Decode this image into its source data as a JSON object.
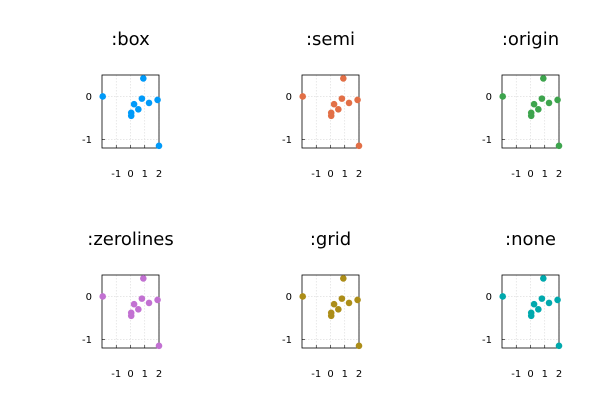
{
  "chart_data": [
    {
      "type": "scatter",
      "title": ":box",
      "color": "#009af9",
      "framestyle": "box",
      "grid": true,
      "xlim": [
        -2,
        2
      ],
      "ylim": [
        -1.2,
        0.5
      ],
      "xticks": [
        -1,
        0,
        1,
        2
      ],
      "yticks": [
        0,
        -1
      ],
      "points": [
        [
          -1.95,
          0.0
        ],
        [
          0.9,
          0.42
        ],
        [
          0.25,
          -0.18
        ],
        [
          0.55,
          -0.3
        ],
        [
          0.05,
          -0.38
        ],
        [
          0.05,
          -0.45
        ],
        [
          0.8,
          -0.05
        ],
        [
          1.3,
          -0.15
        ],
        [
          1.9,
          -0.08
        ],
        [
          2.0,
          -1.15
        ]
      ]
    },
    {
      "type": "scatter",
      "title": ":semi",
      "color": "#e26f46",
      "framestyle": "semi",
      "grid": true,
      "xlim": [
        -2,
        2
      ],
      "ylim": [
        -1.2,
        0.5
      ],
      "xticks": [
        -1,
        0,
        1,
        2
      ],
      "yticks": [
        0,
        -1
      ],
      "points": [
        [
          -1.95,
          0.0
        ],
        [
          0.9,
          0.42
        ],
        [
          0.25,
          -0.18
        ],
        [
          0.55,
          -0.3
        ],
        [
          0.05,
          -0.38
        ],
        [
          0.05,
          -0.45
        ],
        [
          0.8,
          -0.05
        ],
        [
          1.3,
          -0.15
        ],
        [
          1.9,
          -0.08
        ],
        [
          2.0,
          -1.15
        ]
      ]
    },
    {
      "type": "scatter",
      "title": ":origin",
      "color": "#3da44d",
      "framestyle": "origin",
      "grid": true,
      "xlim": [
        -2,
        2
      ],
      "ylim": [
        -1.2,
        0.5
      ],
      "xticks": [
        -1,
        0,
        1,
        2
      ],
      "yticks": [
        0,
        -1
      ],
      "points": [
        [
          -1.95,
          0.0
        ],
        [
          0.9,
          0.42
        ],
        [
          0.25,
          -0.18
        ],
        [
          0.55,
          -0.3
        ],
        [
          0.05,
          -0.38
        ],
        [
          0.05,
          -0.45
        ],
        [
          0.8,
          -0.05
        ],
        [
          1.3,
          -0.15
        ],
        [
          1.9,
          -0.08
        ],
        [
          2.0,
          -1.15
        ]
      ]
    },
    {
      "type": "scatter",
      "title": ":zerolines",
      "color": "#c271d2",
      "framestyle": "zerolines",
      "grid": true,
      "xlim": [
        -2,
        2
      ],
      "ylim": [
        -1.2,
        0.5
      ],
      "xticks": [
        -1,
        0,
        1,
        2
      ],
      "yticks": [
        0,
        -1
      ],
      "points": [
        [
          -1.95,
          0.0
        ],
        [
          0.9,
          0.42
        ],
        [
          0.25,
          -0.18
        ],
        [
          0.55,
          -0.3
        ],
        [
          0.05,
          -0.38
        ],
        [
          0.05,
          -0.45
        ],
        [
          0.8,
          -0.05
        ],
        [
          1.3,
          -0.15
        ],
        [
          1.9,
          -0.08
        ],
        [
          2.0,
          -1.15
        ]
      ]
    },
    {
      "type": "scatter",
      "title": ":grid",
      "color": "#ac8d18",
      "framestyle": "grid",
      "grid": true,
      "xlim": [
        -2,
        2
      ],
      "ylim": [
        -1.2,
        0.5
      ],
      "xticks": [
        -1,
        0,
        1,
        2
      ],
      "yticks": [
        0,
        -1
      ],
      "points": [
        [
          -1.95,
          0.0
        ],
        [
          0.9,
          0.42
        ],
        [
          0.25,
          -0.18
        ],
        [
          0.55,
          -0.3
        ],
        [
          0.05,
          -0.38
        ],
        [
          0.05,
          -0.45
        ],
        [
          0.8,
          -0.05
        ],
        [
          1.3,
          -0.15
        ],
        [
          1.9,
          -0.08
        ],
        [
          2.0,
          -1.15
        ]
      ]
    },
    {
      "type": "scatter",
      "title": ":none",
      "color": "#00a9ad",
      "framestyle": "none",
      "grid": true,
      "xlim": [
        -2,
        2
      ],
      "ylim": [
        -1.2,
        0.5
      ],
      "xticks": [
        -1,
        0,
        1,
        2
      ],
      "yticks": [
        0,
        -1
      ],
      "points": [
        [
          -1.95,
          0.0
        ],
        [
          0.9,
          0.42
        ],
        [
          0.25,
          -0.18
        ],
        [
          0.55,
          -0.3
        ],
        [
          0.05,
          -0.38
        ],
        [
          0.05,
          -0.45
        ],
        [
          0.8,
          -0.05
        ],
        [
          1.3,
          -0.15
        ],
        [
          1.9,
          -0.08
        ],
        [
          2.0,
          -1.15
        ]
      ]
    }
  ]
}
